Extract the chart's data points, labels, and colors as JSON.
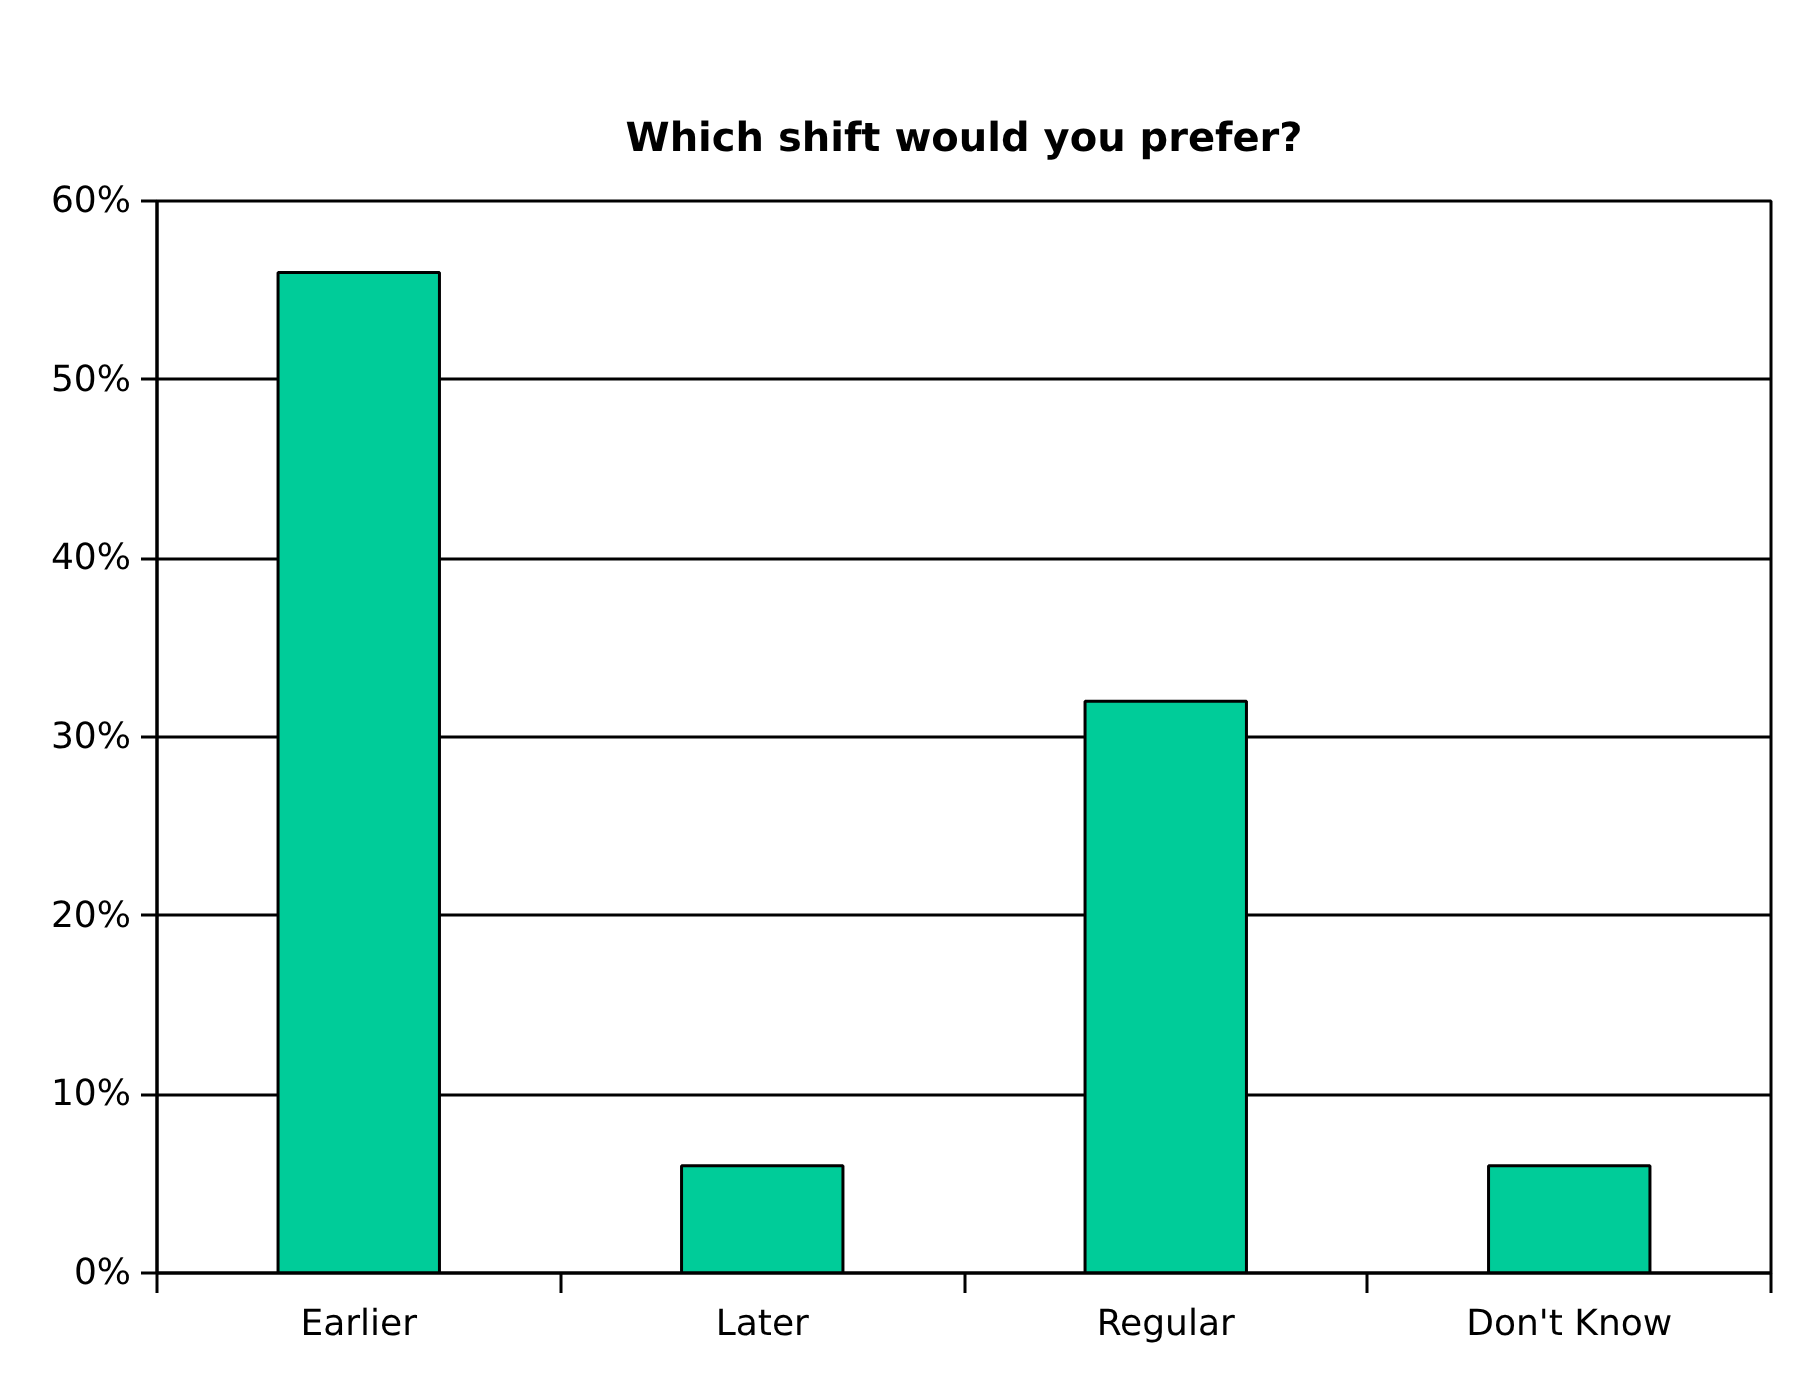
{
  "chart_data": {
    "type": "bar",
    "title": "Which shift would you prefer?",
    "categories": [
      "Earlier",
      "Later",
      "Regular",
      "Don't Know"
    ],
    "values": [
      56,
      6,
      32,
      6
    ],
    "color": "#00cc99",
    "ylim": [
      0,
      60
    ],
    "yticks": [
      {
        "value": 0,
        "label": "0%"
      },
      {
        "value": 10,
        "label": "10%"
      },
      {
        "value": 20,
        "label": "20%"
      },
      {
        "value": 30,
        "label": "30%"
      },
      {
        "value": 40,
        "label": "40%"
      },
      {
        "value": 50,
        "label": "50%"
      },
      {
        "value": 60,
        "label": "60%"
      }
    ],
    "grid": "y"
  }
}
